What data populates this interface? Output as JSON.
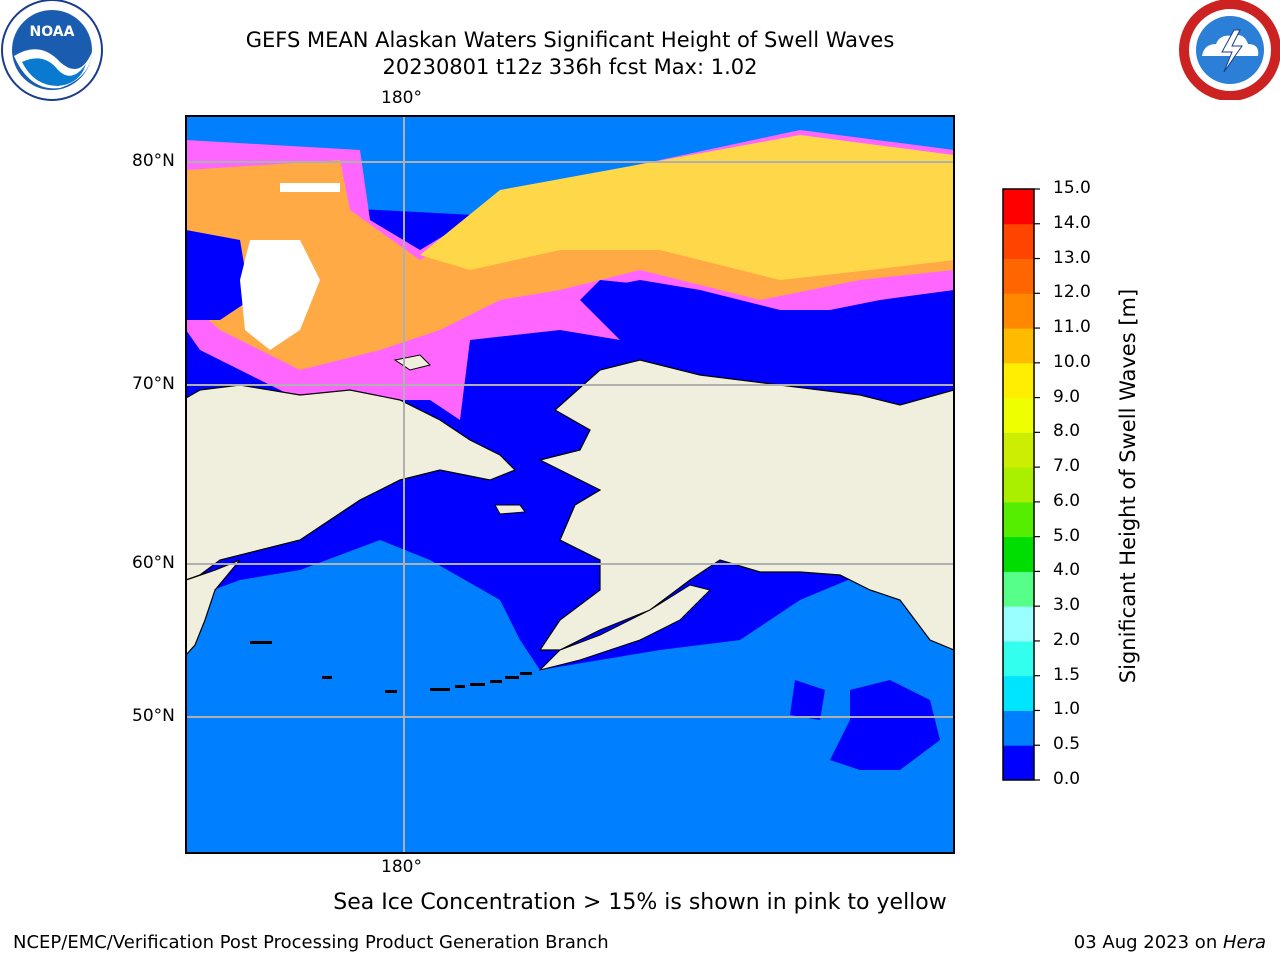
{
  "header": {
    "title_line1": "GEFS MEAN Alaskan Waters Significant Height of Swell Waves",
    "title_line2": "20230801 t12z 336h fcst   Max: 1.02"
  },
  "logos": {
    "left": {
      "icon": "noaa-logo",
      "text": "NOAA"
    },
    "right": {
      "icon": "national-weather-service-logo"
    }
  },
  "map": {
    "lon_label_top": "180°",
    "lon_label_bottom": "180°",
    "lat_labels": [
      "80°N",
      "70°N",
      "60°N",
      "50°N"
    ],
    "colors": {
      "ocean_low": "#0000ff",
      "ocean_mid": "#0080ff",
      "land": "#f0eedc",
      "ice_pink": "#ff66ff",
      "ice_orange": "#ffaa44",
      "ice_yellow": "#ffd84a",
      "gridline": "#b0b0b0"
    }
  },
  "colorbar": {
    "title": "Significant Height of Swell Waves [m]",
    "ticks": [
      "0.0",
      "0.5",
      "1.0",
      "1.5",
      "2.0",
      "3.0",
      "4.0",
      "5.0",
      "6.0",
      "7.0",
      "8.0",
      "9.0",
      "10.0",
      "11.0",
      "12.0",
      "13.0",
      "14.0",
      "15.0"
    ],
    "colors": [
      "#0000ff",
      "#0080ff",
      "#00e5ff",
      "#33ffee",
      "#99ffff",
      "#55ff88",
      "#00dd00",
      "#55ee00",
      "#aaee00",
      "#ccee00",
      "#eeff00",
      "#ffee00",
      "#ffbb00",
      "#ff8800",
      "#ff6600",
      "#ff4400",
      "#ff0000"
    ]
  },
  "caption": "Sea Ice Concentration > 15% is shown in pink to yellow",
  "footer": {
    "left": "NCEP/EMC/Verification Post Processing Product Generation Branch",
    "right_prefix": "03 Aug 2023 on ",
    "right_italic": "Hera"
  }
}
